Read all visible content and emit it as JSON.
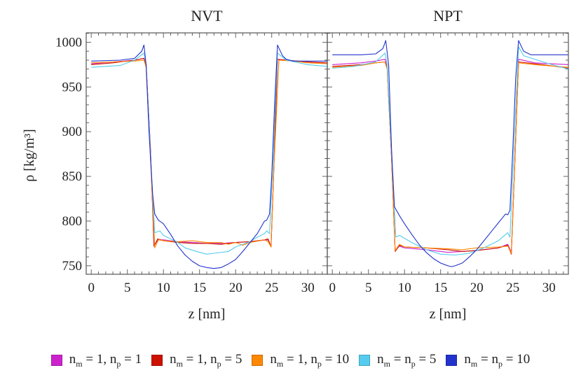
{
  "chart_data": {
    "type": "line",
    "xlabel": "z [nm]",
    "ylabel": "ρ [kg/m³]",
    "xlim": [
      -0.7,
      32.7
    ],
    "ylim": [
      740.5,
      1010.5
    ],
    "xticks": [
      0,
      5,
      10,
      15,
      20,
      25,
      30
    ],
    "yticks": [
      750,
      800,
      850,
      900,
      950,
      1000
    ],
    "legend_position": "bottom",
    "series_meta": [
      {
        "key": "m1p1",
        "name": "n_m = 1, n_p = 1",
        "label_parts": [
          "1",
          "1"
        ],
        "form": "a",
        "color": "#cc22cc"
      },
      {
        "key": "m1p5",
        "name": "n_m = 1, n_p = 5",
        "label_parts": [
          "1",
          "5"
        ],
        "form": "a",
        "color": "#cc1100"
      },
      {
        "key": "m1p10",
        "name": "n_m = 1, n_p = 10",
        "label_parts": [
          "1",
          "10"
        ],
        "form": "a",
        "color": "#ff8800"
      },
      {
        "key": "mp5",
        "name": "n_m = n_p = 5",
        "label_parts": [
          "5"
        ],
        "form": "b",
        "color": "#55ccee"
      },
      {
        "key": "mp10",
        "name": "n_m = n_p = 10",
        "label_parts": [
          "10"
        ],
        "form": "b",
        "color": "#2233cc"
      }
    ],
    "panels": [
      {
        "title": "NVT",
        "series": {
          "m1p1": [
            [
              0,
              976
            ],
            [
              3,
              978
            ],
            [
              6,
              980
            ],
            [
              7.3,
              982
            ],
            [
              7.6,
              975
            ],
            [
              8.2,
              880
            ],
            [
              8.7,
              772
            ],
            [
              9.2,
              779
            ],
            [
              10,
              779
            ],
            [
              12,
              777
            ],
            [
              14,
              776
            ],
            [
              16,
              775
            ],
            [
              18,
              775
            ],
            [
              20,
              776
            ],
            [
              22,
              777
            ],
            [
              24.5,
              779
            ],
            [
              24.9,
              771
            ],
            [
              25.3,
              860
            ],
            [
              25.8,
              981
            ],
            [
              27,
              980
            ],
            [
              30,
              978
            ],
            [
              32.7,
              976
            ]
          ],
          "m1p5": [
            [
              0,
              975
            ],
            [
              3,
              977
            ],
            [
              6,
              980
            ],
            [
              7.3,
              982
            ],
            [
              7.6,
              975
            ],
            [
              8.2,
              880
            ],
            [
              8.7,
              772
            ],
            [
              9.2,
              780
            ],
            [
              10,
              778
            ],
            [
              12,
              776
            ],
            [
              14,
              775
            ],
            [
              16,
              775
            ],
            [
              18,
              774
            ],
            [
              20,
              776
            ],
            [
              22,
              777
            ],
            [
              24,
              779
            ],
            [
              24.5,
              780
            ],
            [
              24.9,
              771
            ],
            [
              25.3,
              860
            ],
            [
              25.8,
              981
            ],
            [
              27,
              980
            ],
            [
              30,
              978
            ],
            [
              32.7,
              977
            ]
          ],
          "m1p10": [
            [
              0,
              977
            ],
            [
              3,
              978
            ],
            [
              6,
              979
            ],
            [
              7.3,
              980
            ],
            [
              7.6,
              972
            ],
            [
              8.2,
              870
            ],
            [
              8.8,
              770
            ],
            [
              9.3,
              779
            ],
            [
              10,
              778
            ],
            [
              12,
              777
            ],
            [
              14,
              778
            ],
            [
              16,
              776
            ],
            [
              18,
              776
            ],
            [
              19,
              774
            ],
            [
              20,
              776
            ],
            [
              21,
              773
            ],
            [
              22,
              776
            ],
            [
              24,
              779
            ],
            [
              24.5,
              777
            ],
            [
              24.9,
              771
            ],
            [
              25.3,
              860
            ],
            [
              26,
              980
            ],
            [
              28,
              979
            ],
            [
              30,
              977
            ],
            [
              32.7,
              976
            ]
          ],
          "mp5": [
            [
              0,
              972
            ],
            [
              4,
              974
            ],
            [
              6,
              980
            ],
            [
              7.3,
              988
            ],
            [
              7.6,
              975
            ],
            [
              8.3,
              860
            ],
            [
              8.8,
              787
            ],
            [
              9.5,
              789
            ],
            [
              10,
              784
            ],
            [
              12,
              776
            ],
            [
              13,
              770
            ],
            [
              15,
              765
            ],
            [
              16,
              763
            ],
            [
              17,
              764
            ],
            [
              19,
              766
            ],
            [
              20,
              771
            ],
            [
              22,
              777
            ],
            [
              23,
              782
            ],
            [
              24,
              786
            ],
            [
              24.3,
              789
            ],
            [
              24.7,
              786
            ],
            [
              25.2,
              870
            ],
            [
              25.8,
              988
            ],
            [
              27,
              980
            ],
            [
              30,
              975
            ],
            [
              32.7,
              973
            ]
          ],
          "mp10": [
            [
              0,
              979
            ],
            [
              4,
              980
            ],
            [
              6,
              982
            ],
            [
              7,
              990
            ],
            [
              7.3,
              997
            ],
            [
              7.6,
              975
            ],
            [
              8,
              900
            ],
            [
              8.5,
              830
            ],
            [
              8.8,
              808
            ],
            [
              9.3,
              801
            ],
            [
              10,
              797
            ],
            [
              11,
              785
            ],
            [
              12,
              772
            ],
            [
              13,
              762
            ],
            [
              14,
              755
            ],
            [
              15,
              750
            ],
            [
              16,
              748
            ],
            [
              17,
              747
            ],
            [
              18,
              748
            ],
            [
              19,
              752
            ],
            [
              20,
              757
            ],
            [
              21,
              766
            ],
            [
              22,
              776
            ],
            [
              23,
              786
            ],
            [
              24,
              800
            ],
            [
              24.3,
              801
            ],
            [
              24.7,
              808
            ],
            [
              25,
              850
            ],
            [
              25.4,
              930
            ],
            [
              25.8,
              997
            ],
            [
              26.5,
              985
            ],
            [
              27,
              981
            ],
            [
              28,
              979
            ],
            [
              32.7,
              979
            ]
          ]
        }
      },
      {
        "title": "NPT",
        "series": {
          "m1p1": [
            [
              0,
              975
            ],
            [
              4,
              977
            ],
            [
              6,
              979
            ],
            [
              7.3,
              981
            ],
            [
              7.6,
              972
            ],
            [
              8.2,
              870
            ],
            [
              8.7,
              767
            ],
            [
              9.3,
              772
            ],
            [
              10,
              770
            ],
            [
              13,
              768
            ],
            [
              16,
              765
            ],
            [
              18,
              766
            ],
            [
              20,
              767
            ],
            [
              23,
              770
            ],
            [
              24.3,
              774
            ],
            [
              24.8,
              765
            ],
            [
              25.3,
              870
            ],
            [
              25.8,
              981
            ],
            [
              28,
              977
            ],
            [
              32.7,
              975
            ]
          ],
          "m1p5": [
            [
              0,
              973
            ],
            [
              4,
              975
            ],
            [
              6,
              977
            ],
            [
              7.3,
              978
            ],
            [
              7.6,
              970
            ],
            [
              8.2,
              870
            ],
            [
              8.7,
              766
            ],
            [
              9.3,
              773
            ],
            [
              10,
              771
            ],
            [
              13,
              770
            ],
            [
              16,
              768
            ],
            [
              18,
              766
            ],
            [
              20,
              767
            ],
            [
              23,
              770
            ],
            [
              24.3,
              773
            ],
            [
              24.8,
              763
            ],
            [
              25.3,
              870
            ],
            [
              25.8,
              978
            ],
            [
              28,
              976
            ],
            [
              30,
              974
            ],
            [
              32.7,
              971
            ]
          ],
          "m1p10": [
            [
              0,
              972
            ],
            [
              4,
              974
            ],
            [
              6,
              977
            ],
            [
              7.3,
              978
            ],
            [
              7.6,
              970
            ],
            [
              8.2,
              870
            ],
            [
              8.7,
              767
            ],
            [
              9.3,
              774
            ],
            [
              10,
              771
            ],
            [
              13,
              770
            ],
            [
              16,
              769
            ],
            [
              18,
              768
            ],
            [
              20,
              770
            ],
            [
              23,
              771
            ],
            [
              24.3,
              772
            ],
            [
              24.8,
              764
            ],
            [
              25.3,
              870
            ],
            [
              25.8,
              977
            ],
            [
              28,
              975
            ],
            [
              32.7,
              972
            ]
          ],
          "mp5": [
            [
              0,
              971
            ],
            [
              3,
              973
            ],
            [
              6,
              978
            ],
            [
              7.3,
              988
            ],
            [
              7.6,
              975
            ],
            [
              8.3,
              860
            ],
            [
              8.8,
              782
            ],
            [
              9.3,
              784
            ],
            [
              11,
              776
            ],
            [
              13,
              768
            ],
            [
              15,
              763
            ],
            [
              17,
              762
            ],
            [
              19,
              764
            ],
            [
              21,
              770
            ],
            [
              23,
              778
            ],
            [
              24.3,
              787
            ],
            [
              24.6,
              782
            ],
            [
              25.1,
              870
            ],
            [
              25.8,
              995
            ],
            [
              26.5,
              985
            ],
            [
              30,
              976
            ],
            [
              32.7,
              970
            ]
          ],
          "mp10": [
            [
              0,
              986
            ],
            [
              4,
              986
            ],
            [
              6,
              987
            ],
            [
              7,
              993
            ],
            [
              7.4,
              1002
            ],
            [
              7.8,
              975
            ],
            [
              8.2,
              880
            ],
            [
              8.6,
              816
            ],
            [
              9.3,
              806
            ],
            [
              10,
              797
            ],
            [
              11,
              785
            ],
            [
              12,
              774
            ],
            [
              13,
              765
            ],
            [
              14,
              758
            ],
            [
              15,
              753
            ],
            [
              16,
              750
            ],
            [
              16.5,
              749
            ],
            [
              17,
              750
            ],
            [
              18,
              753
            ],
            [
              19,
              760
            ],
            [
              20,
              768
            ],
            [
              21,
              778
            ],
            [
              22,
              788
            ],
            [
              23,
              798
            ],
            [
              24,
              808
            ],
            [
              24.3,
              807
            ],
            [
              24.6,
              812
            ],
            [
              25,
              880
            ],
            [
              25.4,
              960
            ],
            [
              25.8,
              1002
            ],
            [
              26.5,
              990
            ],
            [
              27.5,
              986
            ],
            [
              32.7,
              986
            ]
          ]
        }
      }
    ]
  },
  "legend": {
    "m_sub": "m",
    "p_sub": "p",
    "n": "n",
    "items": [
      {
        "text_a": " = 1, ",
        "text_b": " = 1"
      },
      {
        "text_a": " = 1, ",
        "text_b": " = 5"
      },
      {
        "text_a": " = 1, ",
        "text_b": " = 10"
      },
      {
        "text_a": " = ",
        "text_b": " = 5"
      },
      {
        "text_a": " = ",
        "text_b": " = 10"
      }
    ]
  }
}
